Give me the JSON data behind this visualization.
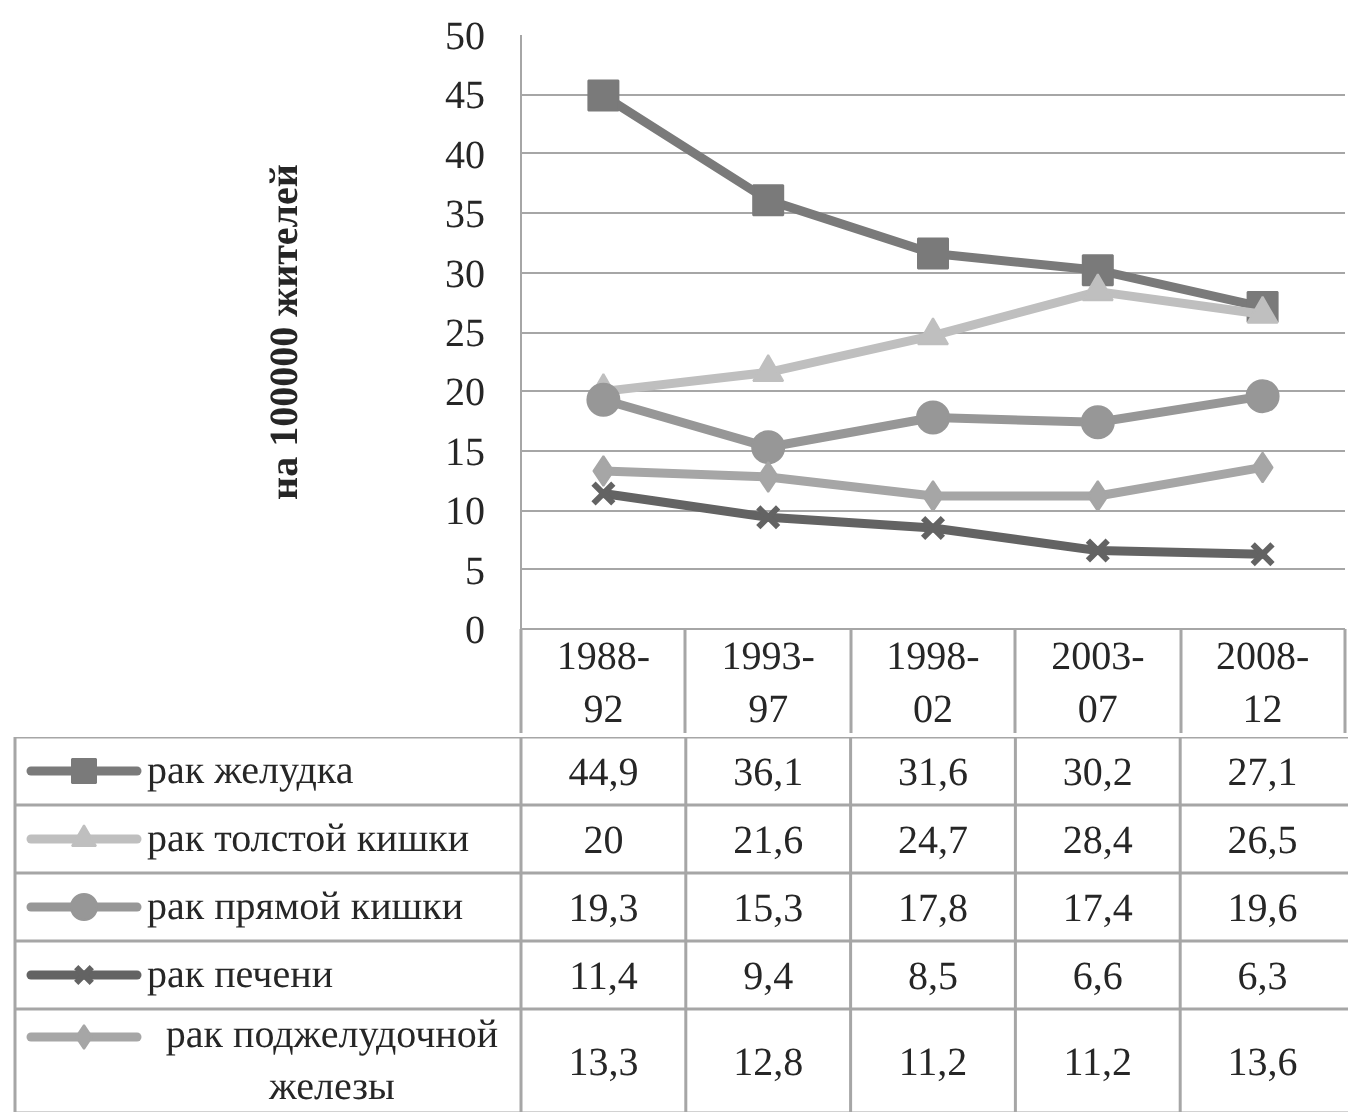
{
  "chart_data": {
    "type": "line",
    "ylabel": "на 100000 жителей",
    "categories": [
      "1988-92",
      "1993-97",
      "1998-02",
      "2003-07",
      "2008-12"
    ],
    "ylim": [
      0,
      50
    ],
    "yticks": [
      0,
      5,
      10,
      15,
      20,
      25,
      30,
      35,
      40,
      45,
      50
    ],
    "grid": "y",
    "legend": "bottom",
    "series": [
      {
        "name": "рак желудка",
        "color": "#7a7a7a",
        "marker": "square",
        "values": [
          44.9,
          36.1,
          31.6,
          30.2,
          27.1
        ],
        "value_labels": [
          "44,9",
          "36,1",
          "31,6",
          "30,2",
          "27,1"
        ]
      },
      {
        "name": "рак толстой кишки",
        "color": "#bfbfbf",
        "marker": "triangle",
        "values": [
          20,
          21.6,
          24.7,
          28.4,
          26.5
        ],
        "value_labels": [
          "20",
          "21,6",
          "24,7",
          "28,4",
          "26,5"
        ]
      },
      {
        "name": "рак прямой кишки",
        "color": "#979797",
        "marker": "circle",
        "values": [
          19.3,
          15.3,
          17.8,
          17.4,
          19.6
        ],
        "value_labels": [
          "19,3",
          "15,3",
          "17,8",
          "17,4",
          "19,6"
        ]
      },
      {
        "name": "рак печени",
        "color": "#636363",
        "marker": "cross",
        "values": [
          11.4,
          9.4,
          8.5,
          6.6,
          6.3
        ],
        "value_labels": [
          "11,4",
          "9,4",
          "8,5",
          "6,6",
          "6,3"
        ]
      },
      {
        "name": "рак поджелудочной железы",
        "color": "#a6a6a6",
        "marker": "diamond",
        "values": [
          13.3,
          12.8,
          11.2,
          11.2,
          13.6
        ],
        "value_labels": [
          "13,3",
          "12,8",
          "11,2",
          "11,2",
          "13,6"
        ]
      }
    ]
  }
}
